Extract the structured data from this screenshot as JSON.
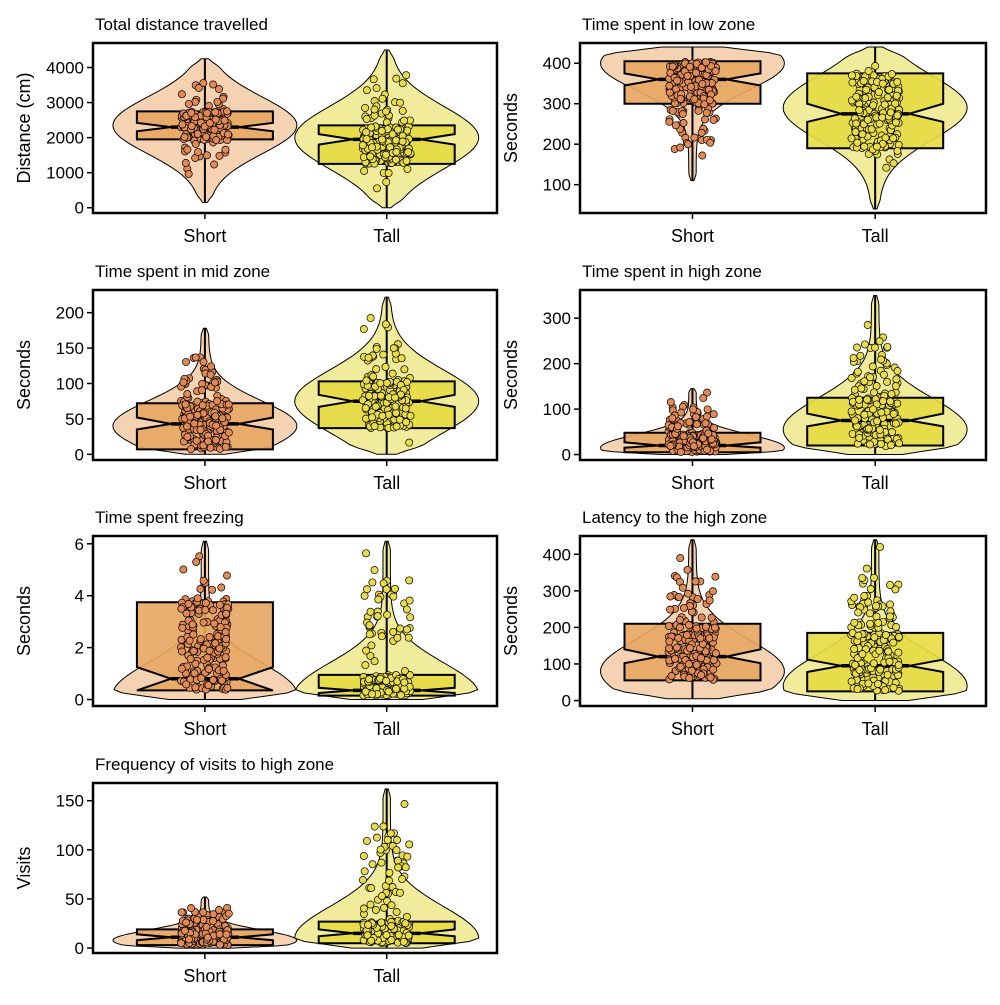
{
  "colors": {
    "short_fill": "#e8a660",
    "short_violin": "#f3caa4",
    "short_point": "#e08a58",
    "tall_fill": "#e6dc42",
    "tall_violin": "#efe98a",
    "tall_point": "#e8dc4c",
    "outline": "#000000"
  },
  "chart_data": [
    {
      "id": "distance",
      "type": "box-violin",
      "title": "Total distance travelled",
      "ylabel": "Distance (cm)",
      "categories": [
        "Short",
        "Tall"
      ],
      "ylim": [
        -150,
        4700
      ],
      "yticks": [
        0,
        1000,
        2000,
        3000,
        4000
      ],
      "groups": [
        {
          "name": "Short",
          "min": 150,
          "q1": 1950,
          "median": 2300,
          "q3": 2750,
          "max": 4250,
          "notch": [
            2180,
            2420
          ],
          "violin_range": [
            150,
            4250
          ],
          "violin_mode": 2350,
          "point_range": [
            150,
            4250
          ]
        },
        {
          "name": "Tall",
          "min": 0,
          "q1": 1250,
          "median": 1950,
          "q3": 2350,
          "max": 4500,
          "notch": [
            1800,
            2100
          ],
          "violin_range": [
            0,
            4500
          ],
          "violin_mode": 2000,
          "point_range": [
            0,
            4500
          ]
        }
      ]
    },
    {
      "id": "low-zone",
      "type": "box-violin",
      "title": "Time spent in low zone",
      "ylabel": "Seconds",
      "categories": [
        "Short",
        "Tall"
      ],
      "ylim": [
        30,
        450
      ],
      "yticks": [
        100,
        200,
        300,
        400
      ],
      "groups": [
        {
          "name": "Short",
          "min": 110,
          "q1": 300,
          "median": 360,
          "q3": 405,
          "max": 440,
          "notch": [
            345,
            375
          ],
          "violin_range": [
            110,
            440
          ],
          "violin_mode": 400,
          "point_range": [
            110,
            440
          ]
        },
        {
          "name": "Tall",
          "min": 40,
          "q1": 190,
          "median": 275,
          "q3": 375,
          "max": 440,
          "notch": [
            255,
            300
          ],
          "violin_range": [
            40,
            440
          ],
          "violin_mode": 290,
          "point_range": [
            40,
            440
          ]
        }
      ]
    },
    {
      "id": "mid-zone",
      "type": "box-violin",
      "title": "Time spent in mid zone",
      "ylabel": "Seconds",
      "categories": [
        "Short",
        "Tall"
      ],
      "ylim": [
        -8,
        232
      ],
      "yticks": [
        0,
        50,
        100,
        150,
        200
      ],
      "groups": [
        {
          "name": "Short",
          "min": 0,
          "q1": 7,
          "median": 43,
          "q3": 72,
          "max": 178,
          "notch": [
            35,
            52
          ],
          "violin_range": [
            0,
            178
          ],
          "violin_mode": 40,
          "point_range": [
            0,
            178
          ]
        },
        {
          "name": "Tall",
          "min": 0,
          "q1": 37,
          "median": 75,
          "q3": 103,
          "max": 222,
          "notch": [
            67,
            84
          ],
          "violin_range": [
            0,
            222
          ],
          "violin_mode": 75,
          "point_range": [
            0,
            222
          ]
        }
      ]
    },
    {
      "id": "high-zone",
      "type": "box-violin",
      "title": "Time spent in high zone",
      "ylabel": "Seconds",
      "categories": [
        "Short",
        "Tall"
      ],
      "ylim": [
        -12,
        362
      ],
      "yticks": [
        0,
        100,
        200,
        300
      ],
      "groups": [
        {
          "name": "Short",
          "min": 0,
          "q1": 5,
          "median": 20,
          "q3": 48,
          "max": 145,
          "notch": [
            15,
            27
          ],
          "violin_range": [
            0,
            145
          ],
          "violin_mode": 15,
          "point_range": [
            0,
            145
          ]
        },
        {
          "name": "Tall",
          "min": 0,
          "q1": 20,
          "median": 75,
          "q3": 125,
          "max": 350,
          "notch": [
            62,
            90
          ],
          "violin_range": [
            0,
            350
          ],
          "violin_mode": 55,
          "point_range": [
            0,
            350
          ]
        }
      ]
    },
    {
      "id": "freezing",
      "type": "box-violin",
      "title": "Time spent freezing",
      "ylabel": "Seconds",
      "categories": [
        "Short",
        "Tall"
      ],
      "ylim": [
        -0.25,
        6.3
      ],
      "yticks": [
        0,
        2,
        4,
        6
      ],
      "groups": [
        {
          "name": "Short",
          "min": 0,
          "q1": 0.35,
          "median": 0.8,
          "q3": 3.75,
          "max": 6.1,
          "notch": [
            0.35,
            1.25
          ],
          "violin_range": [
            0,
            6.1
          ],
          "violin_mode": 0.2,
          "point_range": [
            0,
            6.1
          ]
        },
        {
          "name": "Tall",
          "min": 0,
          "q1": 0.15,
          "median": 0.35,
          "q3": 0.95,
          "max": 6.1,
          "notch": [
            0.25,
            0.45
          ],
          "violin_range": [
            0,
            6.1
          ],
          "violin_mode": 0.2,
          "point_range": [
            0,
            6.1
          ]
        }
      ]
    },
    {
      "id": "latency",
      "type": "box-violin",
      "title": "Latency to the high zone",
      "ylabel": "Seconds",
      "categories": [
        "Short",
        "Tall"
      ],
      "ylim": [
        -15,
        450
      ],
      "yticks": [
        0,
        100,
        200,
        300,
        400
      ],
      "groups": [
        {
          "name": "Short",
          "min": 5,
          "q1": 55,
          "median": 120,
          "q3": 210,
          "max": 440,
          "notch": [
            102,
            140
          ],
          "violin_range": [
            5,
            440
          ],
          "violin_mode": 80,
          "point_range": [
            5,
            440
          ]
        },
        {
          "name": "Tall",
          "min": 0,
          "q1": 25,
          "median": 95,
          "q3": 185,
          "max": 440,
          "notch": [
            78,
            112
          ],
          "violin_range": [
            0,
            440
          ],
          "violin_mode": 40,
          "point_range": [
            0,
            440
          ]
        }
      ]
    },
    {
      "id": "visits",
      "type": "box-violin",
      "title": "Frequency of visits to high zone",
      "ylabel": "Visits",
      "categories": [
        "Short",
        "Tall"
      ],
      "ylim": [
        -5,
        168
      ],
      "yticks": [
        0,
        50,
        100,
        150
      ],
      "groups": [
        {
          "name": "Short",
          "min": 0,
          "q1": 3,
          "median": 11,
          "q3": 19,
          "max": 52,
          "notch": [
            8,
            14
          ],
          "violin_range": [
            0,
            52
          ],
          "violin_mode": 8,
          "point_range": [
            0,
            52
          ]
        },
        {
          "name": "Tall",
          "min": 0,
          "q1": 5,
          "median": 15,
          "q3": 27,
          "max": 162,
          "notch": [
            12,
            19
          ],
          "violin_range": [
            0,
            162
          ],
          "violin_mode": 10,
          "point_range": [
            0,
            162
          ]
        }
      ]
    }
  ]
}
